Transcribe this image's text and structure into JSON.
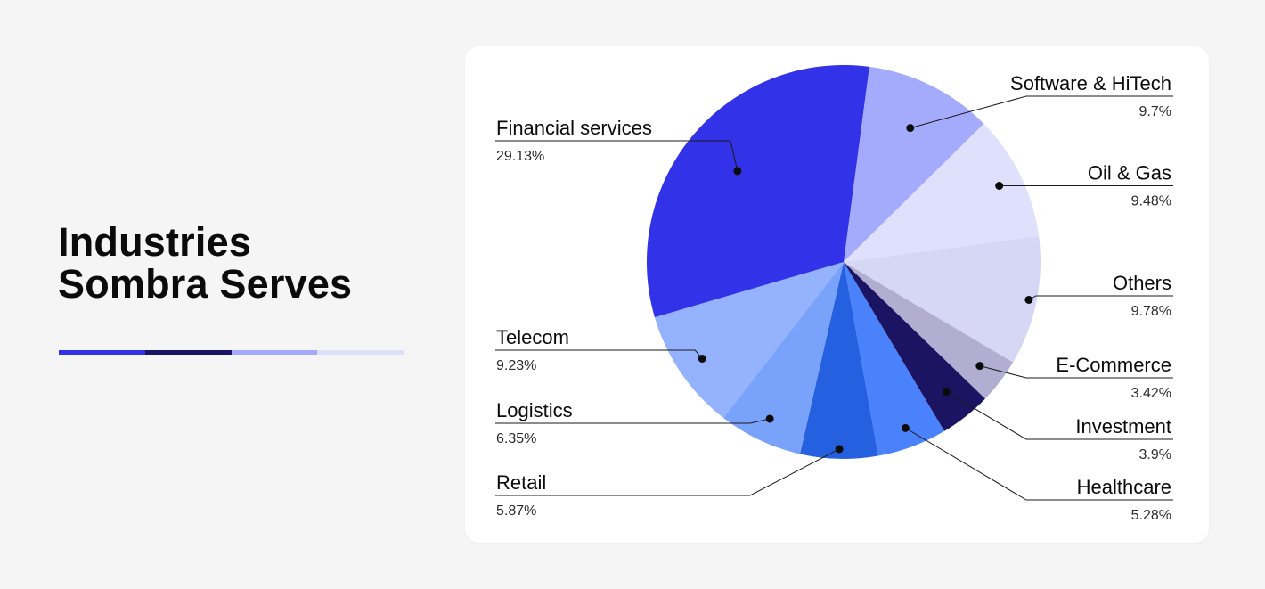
{
  "header": {
    "title_line1": "Industries",
    "title_line2": "Sombra Serves"
  },
  "accent_colors": [
    "#3232e8",
    "#1b1462",
    "#a3aafc",
    "#dedffc"
  ],
  "chart_data": {
    "type": "pie",
    "title": "Industries Sombra Serves",
    "slices": [
      {
        "label": "Software & HiTech",
        "value": 9.7,
        "value_label": "9.7%",
        "color": "#a4abfd"
      },
      {
        "label": "Oil & Gas",
        "value": 9.48,
        "value_label": "9.48%",
        "color": "#dfe0fb"
      },
      {
        "label": "Others",
        "value": 9.78,
        "value_label": "9.78%",
        "color": "#d6d7f4"
      },
      {
        "label": "E-Commerce",
        "value": 3.42,
        "value_label": "3.42%",
        "color": "#b2aed2"
      },
      {
        "label": "Investment",
        "value": 3.9,
        "value_label": "3.9%",
        "color": "#1b1462"
      },
      {
        "label": "Healthcare",
        "value": 5.28,
        "value_label": "5.28%",
        "color": "#4a82fb"
      },
      {
        "label": "Retail",
        "value": 5.87,
        "value_label": "5.87%",
        "color": "#2560e0"
      },
      {
        "label": "Logistics",
        "value": 6.35,
        "value_label": "6.35%",
        "color": "#79a2fb"
      },
      {
        "label": "Telecom",
        "value": 9.23,
        "value_label": "9.23%",
        "color": "#94b2fd"
      },
      {
        "label": "Financial services",
        "value": 29.13,
        "value_label": "29.13%",
        "color": "#3232e8"
      }
    ]
  }
}
